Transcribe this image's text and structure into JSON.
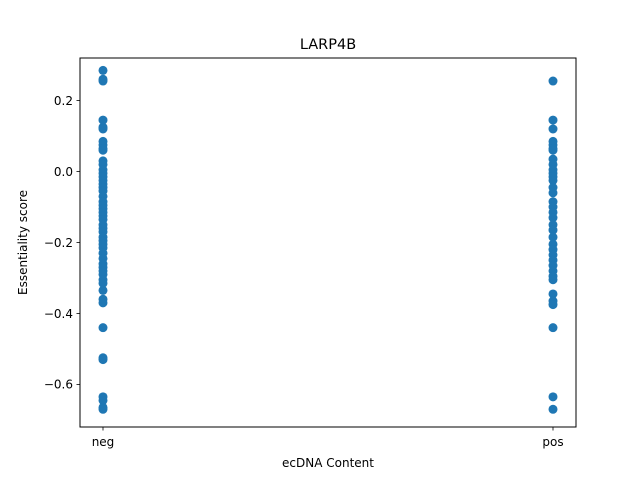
{
  "chart_data": {
    "type": "scatter",
    "title": "LARP4B",
    "xlabel": "ecDNA Content",
    "ylabel": "Essentiality score",
    "categories": [
      "neg",
      "pos"
    ],
    "ylim": [
      -0.72,
      0.32
    ],
    "yticks": [
      -0.6,
      -0.4,
      -0.2,
      0.0,
      0.2
    ],
    "ytick_labels": [
      "−0.6",
      "−0.4",
      "−0.2",
      "0.0",
      "0.2"
    ],
    "grid": false,
    "marker_color": "#1f77b4",
    "series": [
      {
        "category": "neg",
        "values": [
          0.285,
          0.26,
          0.255,
          0.145,
          0.125,
          0.12,
          0.085,
          0.075,
          0.065,
          0.06,
          0.03,
          0.02,
          0.005,
          -0.005,
          -0.015,
          -0.025,
          -0.035,
          -0.045,
          -0.055,
          -0.07,
          -0.085,
          -0.095,
          -0.105,
          -0.115,
          -0.125,
          -0.135,
          -0.15,
          -0.16,
          -0.17,
          -0.185,
          -0.195,
          -0.205,
          -0.215,
          -0.23,
          -0.245,
          -0.26,
          -0.27,
          -0.28,
          -0.29,
          -0.305,
          -0.315,
          -0.335,
          -0.36,
          -0.37,
          -0.44,
          -0.525,
          -0.53,
          -0.635,
          -0.645,
          -0.665,
          -0.67
        ]
      },
      {
        "category": "pos",
        "values": [
          0.255,
          0.145,
          0.12,
          0.085,
          0.075,
          0.065,
          0.06,
          0.035,
          0.02,
          0.005,
          -0.005,
          -0.015,
          -0.025,
          -0.045,
          -0.06,
          -0.085,
          -0.1,
          -0.115,
          -0.13,
          -0.15,
          -0.165,
          -0.185,
          -0.205,
          -0.22,
          -0.235,
          -0.25,
          -0.265,
          -0.28,
          -0.295,
          -0.305,
          -0.345,
          -0.365,
          -0.375,
          -0.44,
          -0.635,
          -0.67
        ]
      }
    ]
  }
}
